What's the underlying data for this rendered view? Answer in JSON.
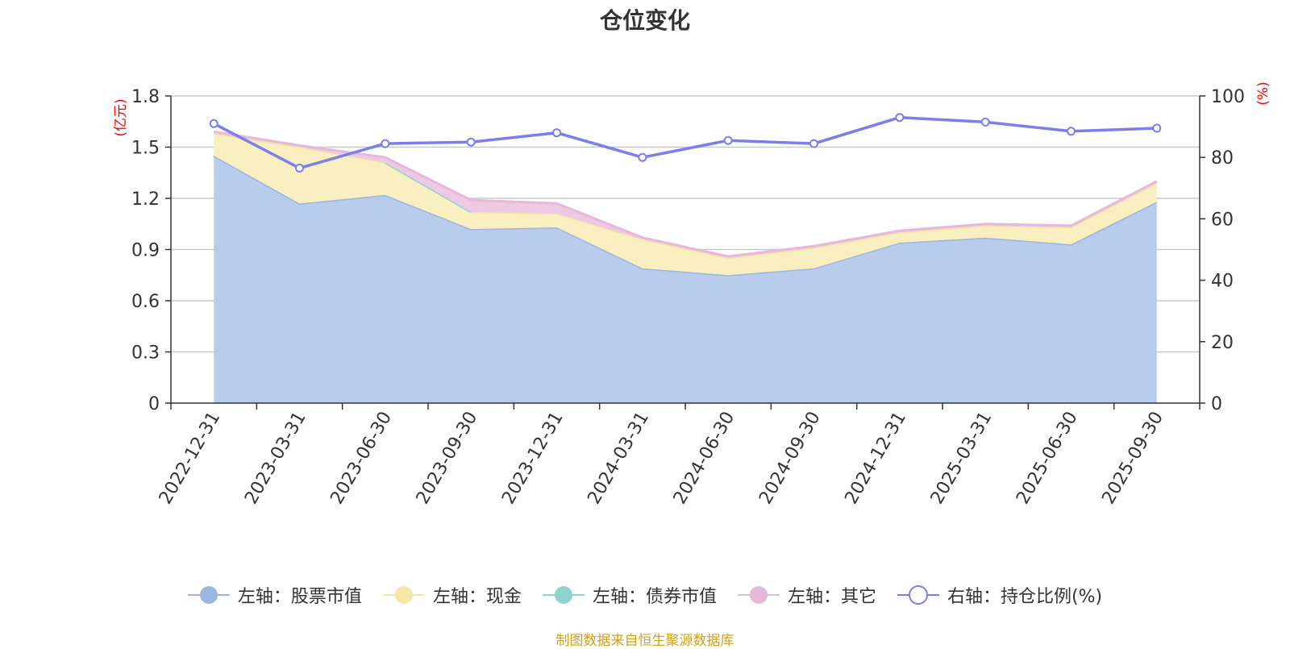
{
  "chart_data": {
    "type": "area",
    "title": "仓位变化",
    "categories": [
      "2022-12-31",
      "2023-03-31",
      "2023-06-30",
      "2023-09-30",
      "2023-12-31",
      "2024-03-31",
      "2024-06-30",
      "2024-09-30",
      "2024-12-31",
      "2025-03-31",
      "2025-06-30",
      "2025-09-30"
    ],
    "left_axis": {
      "label": "(亿元)",
      "ylim": [
        0,
        1.8
      ],
      "ticks": [
        "0",
        "0.3",
        "0.6",
        "0.9",
        "1.2",
        "1.5",
        "1.8"
      ]
    },
    "right_axis": {
      "label": "(%)",
      "ylim": [
        0,
        100
      ],
      "ticks": [
        "0",
        "20",
        "40",
        "60",
        "80",
        "100"
      ]
    },
    "series": [
      {
        "name": "左轴：股票市值",
        "axis": "left",
        "kind": "area",
        "color": "#9db6e0",
        "fill": "#b8cceb",
        "values": [
          1.45,
          1.17,
          1.22,
          1.02,
          1.03,
          0.79,
          0.75,
          0.79,
          0.94,
          0.97,
          0.93,
          1.18
        ]
      },
      {
        "name": "左轴：现金",
        "axis": "left",
        "kind": "area",
        "color": "#f7e6a6",
        "fill": "#faefc0",
        "values": [
          0.13,
          0.33,
          0.19,
          0.1,
          0.08,
          0.17,
          0.1,
          0.12,
          0.06,
          0.07,
          0.1,
          0.11
        ]
      },
      {
        "name": "左轴：债券市值",
        "axis": "left",
        "kind": "area",
        "color": "#8fd3d1",
        "fill": "#b8e4e2",
        "values": [
          null,
          null,
          0.0,
          0.0,
          null,
          null,
          null,
          null,
          null,
          null,
          null,
          null
        ]
      },
      {
        "name": "左轴：其它",
        "axis": "left",
        "kind": "area",
        "color": "#e8b8db",
        "fill": "#edc9e3",
        "values": [
          0.01,
          0.01,
          0.03,
          0.07,
          0.06,
          0.01,
          0.01,
          0.01,
          0.01,
          0.01,
          0.01,
          0.01
        ]
      },
      {
        "name": "右轴：持仓比例(%)",
        "axis": "right",
        "kind": "line",
        "color": "#7b7fee",
        "values": [
          91,
          76.5,
          84.5,
          85,
          88,
          80,
          85.5,
          84.5,
          93,
          91.5,
          88.5,
          89.5
        ]
      }
    ]
  },
  "source_note": "制图数据来自恒生聚源数据库"
}
